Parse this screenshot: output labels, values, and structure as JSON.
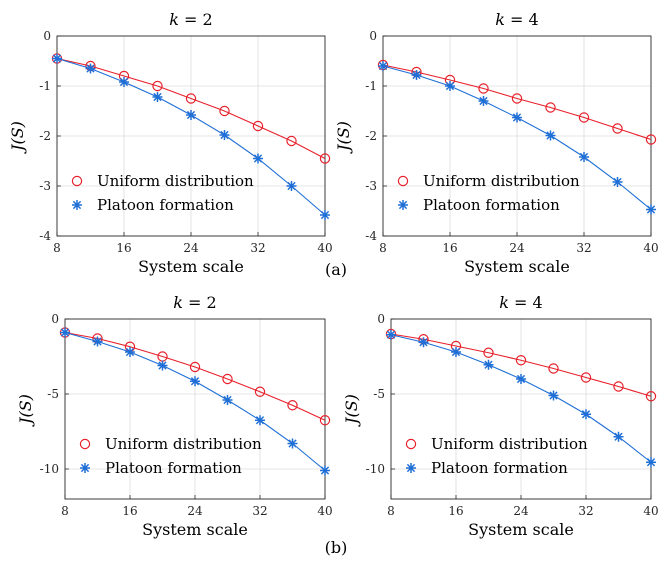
{
  "captions": [
    "(a)",
    "(b)"
  ],
  "chart_data": [
    {
      "type": "line",
      "title": "k = 2",
      "title_var": "k",
      "title_rest": " = 2",
      "xlabel": "System scale",
      "ylabel": "J(S)",
      "x": [
        8,
        12,
        16,
        20,
        24,
        28,
        32,
        36,
        40
      ],
      "xticks": [
        "8",
        "16",
        "24",
        "32",
        "40"
      ],
      "yticks": [
        "0",
        "-1",
        "-2",
        "-3",
        "-4"
      ],
      "xlim": [
        8,
        40
      ],
      "ylim": [
        -4,
        0
      ],
      "grid": true,
      "legend_position": "bottom-left",
      "series": [
        {
          "name": "Uniform distribution",
          "marker": "circle",
          "color": "#e8202a",
          "values": [
            -0.45,
            -0.6,
            -0.8,
            -1.0,
            -1.25,
            -1.5,
            -1.8,
            -2.1,
            -2.45
          ]
        },
        {
          "name": "Platoon formation",
          "marker": "asterisk",
          "color": "#1f6fd6",
          "values": [
            -0.45,
            -0.65,
            -0.92,
            -1.22,
            -1.58,
            -1.98,
            -2.45,
            -3.0,
            -3.58
          ]
        }
      ]
    },
    {
      "type": "line",
      "title": "k = 4",
      "title_var": "k",
      "title_rest": " = 4",
      "xlabel": "System scale",
      "ylabel": "J(S)",
      "x": [
        8,
        12,
        16,
        20,
        24,
        28,
        32,
        36,
        40
      ],
      "xticks": [
        "8",
        "16",
        "24",
        "32",
        "40"
      ],
      "yticks": [
        "0",
        "-1",
        "-2",
        "-3",
        "-4"
      ],
      "xlim": [
        8,
        40
      ],
      "ylim": [
        -4,
        0
      ],
      "grid": true,
      "legend_position": "bottom-left",
      "series": [
        {
          "name": "Uniform distribution",
          "marker": "circle",
          "color": "#e8202a",
          "values": [
            -0.58,
            -0.72,
            -0.88,
            -1.05,
            -1.25,
            -1.43,
            -1.63,
            -1.85,
            -2.07
          ]
        },
        {
          "name": "Platoon formation",
          "marker": "asterisk",
          "color": "#1f6fd6",
          "values": [
            -0.6,
            -0.78,
            -1.0,
            -1.3,
            -1.63,
            -1.99,
            -2.42,
            -2.92,
            -3.47
          ]
        }
      ]
    },
    {
      "type": "line",
      "title": "k = 2",
      "title_var": "k",
      "title_rest": " = 2",
      "xlabel": "System scale",
      "ylabel": "J(S)",
      "x": [
        8,
        12,
        16,
        20,
        24,
        28,
        32,
        36,
        40
      ],
      "xticks": [
        "8",
        "16",
        "24",
        "32",
        "40"
      ],
      "yticks": [
        "0",
        "-5",
        "-10"
      ],
      "ytick_values": [
        0,
        -5,
        -10
      ],
      "xlim": [
        8,
        40
      ],
      "ylim": [
        -12,
        0
      ],
      "grid": true,
      "legend_position": "bottom-left",
      "series": [
        {
          "name": "Uniform distribution",
          "marker": "circle",
          "color": "#e8202a",
          "values": [
            -0.9,
            -1.3,
            -1.85,
            -2.5,
            -3.2,
            -4.0,
            -4.85,
            -5.75,
            -6.75
          ]
        },
        {
          "name": "Platoon formation",
          "marker": "asterisk",
          "color": "#1f6fd6",
          "values": [
            -0.9,
            -1.5,
            -2.2,
            -3.1,
            -4.15,
            -5.4,
            -6.75,
            -8.3,
            -10.1
          ]
        }
      ]
    },
    {
      "type": "line",
      "title": "k = 4",
      "title_var": "k",
      "title_rest": " = 4",
      "xlabel": "System scale",
      "ylabel": "J(S)",
      "x": [
        8,
        12,
        16,
        20,
        24,
        28,
        32,
        36,
        40
      ],
      "xticks": [
        "8",
        "16",
        "24",
        "32",
        "40"
      ],
      "yticks": [
        "0",
        "-5",
        "-10"
      ],
      "ytick_values": [
        0,
        -5,
        -10
      ],
      "xlim": [
        8,
        40
      ],
      "ylim": [
        -12,
        0
      ],
      "grid": true,
      "legend_position": "bottom-left",
      "series": [
        {
          "name": "Uniform distribution",
          "marker": "circle",
          "color": "#e8202a",
          "values": [
            -1.0,
            -1.35,
            -1.8,
            -2.25,
            -2.75,
            -3.3,
            -3.9,
            -4.5,
            -5.15
          ]
        },
        {
          "name": "Platoon formation",
          "marker": "asterisk",
          "color": "#1f6fd6",
          "values": [
            -1.05,
            -1.55,
            -2.2,
            -3.05,
            -4.0,
            -5.1,
            -6.35,
            -7.85,
            -9.55
          ]
        }
      ]
    }
  ]
}
